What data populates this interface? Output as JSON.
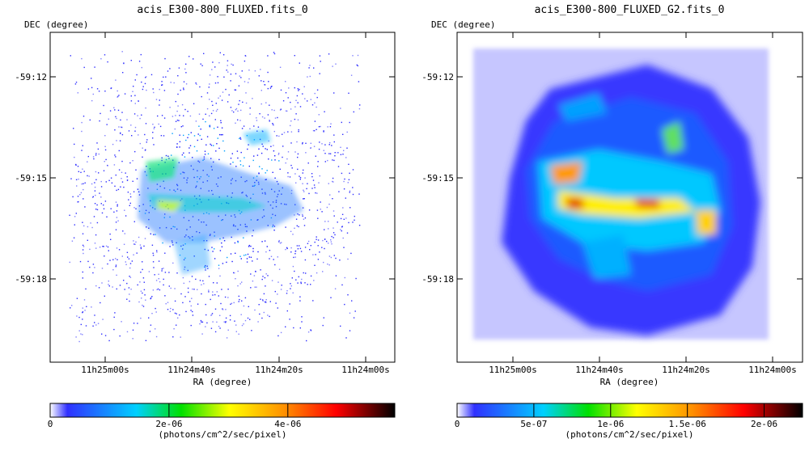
{
  "panels": [
    {
      "title": "acis_E300-800_FLUXED.fits_0",
      "ylabel": "DEC (degree)",
      "xlabel": "RA (degree)",
      "y_ticks": [
        "-59:12",
        "-59:15",
        "-59:18"
      ],
      "x_ticks": [
        "11h25m00s",
        "11h24m40s",
        "11h24m20s",
        "11h24m00s"
      ],
      "colorbar": {
        "tick_labels": [
          "0",
          "2e-06",
          "4e-06"
        ],
        "tick_values": [
          0,
          2e-06,
          4e-06
        ],
        "range": [
          0,
          5.8e-06
        ],
        "unit": "(photons/cm^2/sec/pixel)"
      },
      "render": "sparse"
    },
    {
      "title": "acis_E300-800_FLUXED_G2.fits_0",
      "ylabel": "DEC (degree)",
      "xlabel": "RA (degree)",
      "y_ticks": [
        "-59:12",
        "-59:15",
        "-59:18"
      ],
      "x_ticks": [
        "11h25m00s",
        "11h24m40s",
        "11h24m20s",
        "11h24m00s"
      ],
      "colorbar": {
        "tick_labels": [
          "0",
          "5e-07",
          "1e-06",
          "1.5e-06",
          "2e-06"
        ],
        "tick_values": [
          0,
          5e-07,
          1e-06,
          1.5e-06,
          2e-06
        ],
        "range": [
          0,
          2.25e-06
        ],
        "unit": "(photons/cm^2/sec/pixel)"
      },
      "render": "smooth"
    }
  ],
  "chart_data": [
    {
      "type": "heatmap",
      "title": "acis_E300-800_FLUXED.fits_0",
      "xlabel": "RA (degree)",
      "ylabel": "DEC (degree)",
      "x_tick_labels": [
        "11h25m00s",
        "11h24m40s",
        "11h24m20s",
        "11h24m00s"
      ],
      "y_tick_labels": [
        "-59:12",
        "-59:15",
        "-59:18"
      ],
      "colorbar_label": "(photons/cm^2/sec/pixel)",
      "colorbar_ticks": [
        0,
        2e-06,
        4e-06
      ],
      "colormap": "rainbow (blue-cyan-green-yellow-orange-red-black)",
      "grid": false
    },
    {
      "type": "heatmap",
      "title": "acis_E300-800_FLUXED_G2.fits_0",
      "xlabel": "RA (degree)",
      "ylabel": "DEC (degree)",
      "x_tick_labels": [
        "11h25m00s",
        "11h24m40s",
        "11h24m20s",
        "11h24m00s"
      ],
      "y_tick_labels": [
        "-59:12",
        "-59:15",
        "-59:18"
      ],
      "colorbar_label": "(photons/cm^2/sec/pixel)",
      "colorbar_ticks": [
        0,
        5e-07,
        1e-06,
        1.5e-06,
        2e-06
      ],
      "colormap": "rainbow (blue-cyan-green-yellow-orange-red-black)",
      "grid": false
    }
  ],
  "colormap_stops": [
    "#ffffff",
    "#3030ff",
    "#00d0ff",
    "#00e000",
    "#ffff00",
    "#ff9000",
    "#ff0000",
    "#000000"
  ]
}
